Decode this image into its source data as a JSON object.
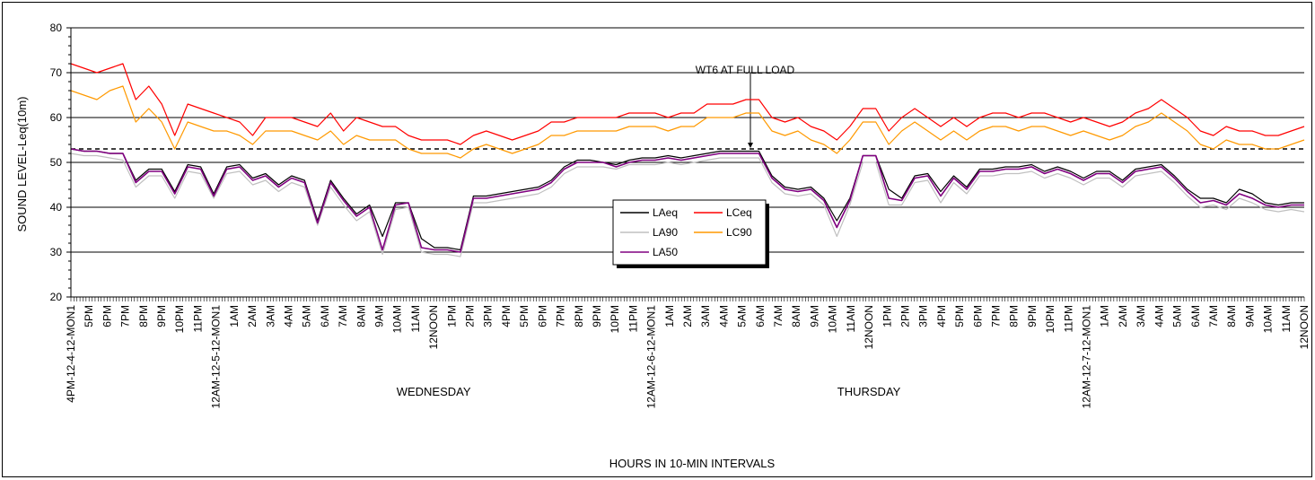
{
  "chart_data": {
    "type": "line",
    "title": "",
    "xlabel": "HOURS IN 10-MIN INTERVALS",
    "ylabel": "SOUND LEVEL-Leq(10m)",
    "ylim": [
      20,
      80
    ],
    "yticks": [
      "20",
      "30",
      "40",
      "50",
      "60",
      "70",
      "80"
    ],
    "x_tick_labels": [
      "4PM-12-4-12-MON1",
      "5PM",
      "6PM",
      "7PM",
      "8PM",
      "9PM",
      "10PM",
      "11PM",
      "12AM-12-5-12-MON1",
      "1AM",
      "2AM",
      "3AM",
      "4AM",
      "5AM",
      "6AM",
      "7AM",
      "8AM",
      "9AM",
      "10AM",
      "11AM",
      "12NOON",
      "1PM",
      "2PM",
      "3PM",
      "4PM",
      "5PM",
      "6PM",
      "7PM",
      "8PM",
      "9PM",
      "10PM",
      "11PM",
      "12AM-12-6-12-MON1",
      "1AM",
      "2AM",
      "3AM",
      "4AM",
      "5AM",
      "6AM",
      "7AM",
      "8AM",
      "9AM",
      "10AM",
      "11AM",
      "12NOON",
      "1PM",
      "2PM",
      "3PM",
      "4PM",
      "5PM",
      "6PM",
      "7PM",
      "8PM",
      "9PM",
      "10PM",
      "11PM",
      "12AM-12-7-12-MON1",
      "1AM",
      "2AM",
      "3AM",
      "4AM",
      "5AM",
      "6AM",
      "7AM",
      "8AM",
      "9AM",
      "10AM",
      "11AM",
      "12NOON"
    ],
    "day_labels": [
      {
        "text": "WEDNESDAY",
        "at_hour": 20
      },
      {
        "text": "THURSDAY",
        "at_hour": 44
      }
    ],
    "reference_line": {
      "label": "WT6 AT FULL LOAD",
      "value": 53
    },
    "legend_position": "center",
    "grid": true,
    "series": [
      {
        "name": "LAeq",
        "color": "#000000",
        "values": [
          53,
          52.5,
          52.5,
          52,
          52,
          46,
          48.5,
          48.5,
          43.5,
          49.5,
          49,
          43,
          49,
          49.5,
          46.5,
          47.5,
          45,
          47,
          46,
          37,
          46,
          42,
          38.5,
          40.5,
          33.5,
          41,
          41,
          33,
          31,
          31,
          30.5,
          42.5,
          42.5,
          43,
          43.5,
          44,
          44.5,
          46,
          49,
          50.5,
          50.5,
          50,
          49.5,
          50.5,
          51,
          51,
          51.5,
          51,
          51.5,
          52,
          52.5,
          52.5,
          52.5,
          52.5,
          47,
          44.5,
          44,
          44.5,
          42,
          37,
          42,
          51.5,
          51.5,
          44,
          42,
          47,
          47.5,
          43.5,
          47,
          44.5,
          48.5,
          48.5,
          49,
          49,
          49.5,
          48,
          49,
          48,
          46.5,
          48,
          48,
          46,
          48.5,
          49,
          49.5,
          47,
          44,
          42,
          42,
          41,
          44,
          43,
          41,
          40.5,
          41,
          41
        ]
      },
      {
        "name": "LA90",
        "color": "#c0c0c0",
        "values": [
          52,
          51.5,
          51.5,
          51,
          50.5,
          44.5,
          47,
          47,
          42,
          48,
          47.5,
          42,
          47.5,
          48,
          45,
          46,
          43.5,
          45.5,
          44.5,
          36,
          44.5,
          40.5,
          37,
          39,
          29.5,
          39.5,
          40,
          30,
          29.5,
          29.5,
          29,
          41,
          41,
          41.5,
          42,
          42.5,
          43,
          44.5,
          47.5,
          49,
          49,
          49,
          48.5,
          49.5,
          49.5,
          49.5,
          50,
          49.5,
          50,
          50.5,
          51,
          51,
          51,
          51,
          45.5,
          43,
          42.5,
          43,
          40.5,
          33.5,
          40.5,
          50,
          50,
          40.5,
          40.5,
          45.5,
          46,
          41,
          45.5,
          43,
          47,
          47,
          47.5,
          47.5,
          48,
          46.5,
          47.5,
          46.5,
          45,
          46.5,
          46.5,
          44.5,
          47,
          47.5,
          48,
          45.5,
          42.5,
          40,
          40.5,
          39.5,
          42,
          41,
          39.5,
          39,
          39.5,
          39
        ]
      },
      {
        "name": "LA50",
        "color": "#800080",
        "values": [
          53,
          52.5,
          52.5,
          52,
          52,
          45.5,
          48,
          48,
          43,
          49,
          48.5,
          42.5,
          48.5,
          49,
          46,
          47,
          44.5,
          46.5,
          45.5,
          36.5,
          45.5,
          41.5,
          38,
          40,
          30.5,
          40.5,
          41,
          31,
          30.5,
          30.5,
          30,
          42,
          42,
          42.5,
          43,
          43.5,
          44,
          45.5,
          48.5,
          50,
          50,
          50,
          49,
          50,
          50.5,
          50.5,
          51,
          50.5,
          51,
          51.5,
          52,
          52,
          52,
          52,
          46.5,
          44,
          43.5,
          44,
          41.5,
          35.5,
          41.5,
          51.5,
          51.5,
          42,
          41.5,
          46.5,
          47,
          42.5,
          46.5,
          44,
          48,
          48,
          48.5,
          48.5,
          49,
          47.5,
          48.5,
          47.5,
          46,
          47.5,
          47.5,
          45.5,
          48,
          48.5,
          49,
          46.5,
          43.5,
          41,
          41.5,
          40.5,
          43,
          42,
          40.5,
          40,
          40.5,
          40.5
        ]
      },
      {
        "name": "LCeq",
        "color": "#ff0000",
        "values": [
          72,
          71,
          70,
          71,
          72,
          64,
          67,
          63,
          56,
          63,
          62,
          61,
          60,
          59,
          56,
          60,
          60,
          60,
          59,
          58,
          61,
          57,
          60,
          59,
          58,
          58,
          56,
          55,
          55,
          55,
          54,
          56,
          57,
          56,
          55,
          56,
          57,
          59,
          59,
          60,
          60,
          60,
          60,
          61,
          61,
          61,
          60,
          61,
          61,
          63,
          63,
          63,
          64,
          64,
          60,
          59,
          60,
          58,
          57,
          55,
          58,
          62,
          62,
          57,
          60,
          62,
          60,
          58,
          60,
          58,
          60,
          61,
          61,
          60,
          61,
          61,
          60,
          59,
          60,
          59,
          58,
          59,
          61,
          62,
          64,
          62,
          60,
          57,
          56,
          58,
          57,
          57,
          56,
          56,
          57,
          58
        ]
      },
      {
        "name": "LC90",
        "color": "#ff9900",
        "values": [
          66,
          65,
          64,
          66,
          67,
          59,
          62,
          59,
          53,
          59,
          58,
          57,
          57,
          56,
          54,
          57,
          57,
          57,
          56,
          55,
          57,
          54,
          56,
          55,
          55,
          55,
          53,
          52,
          52,
          52,
          51,
          53,
          54,
          53,
          52,
          53,
          54,
          56,
          56,
          57,
          57,
          57,
          57,
          58,
          58,
          58,
          57,
          58,
          58,
          60,
          60,
          60,
          61,
          61,
          57,
          56,
          57,
          55,
          54,
          52,
          55,
          59,
          59,
          54,
          57,
          59,
          57,
          55,
          57,
          55,
          57,
          58,
          58,
          57,
          58,
          58,
          57,
          56,
          57,
          56,
          55,
          56,
          58,
          59,
          61,
          59,
          57,
          54,
          53,
          55,
          54,
          54,
          53,
          53,
          54,
          55
        ]
      }
    ]
  }
}
